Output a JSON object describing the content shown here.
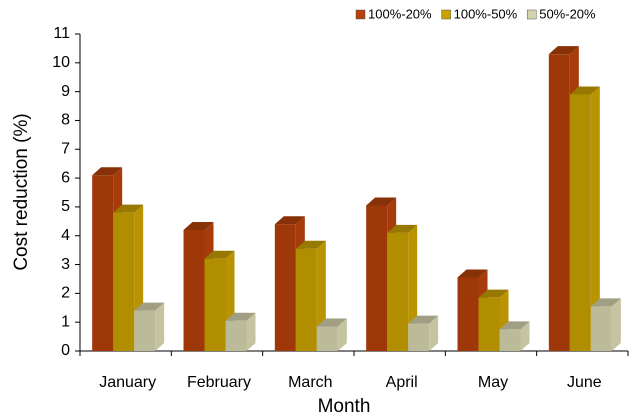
{
  "chart_data": {
    "type": "bar3d",
    "x_label": "Month",
    "y_label": "Cost reduction (%)",
    "categories": [
      "January",
      "February",
      "March",
      "April",
      "May",
      "June"
    ],
    "series": [
      {
        "name": "100%-20%",
        "color": "#b5400a",
        "values": [
          6.1,
          4.2,
          4.4,
          5.05,
          2.55,
          10.3
        ]
      },
      {
        "name": "100%-50%",
        "color": "#c9a000",
        "values": [
          4.8,
          3.2,
          3.55,
          4.1,
          1.85,
          8.9
        ]
      },
      {
        "name": "50%-20%",
        "color": "#d6d4ae",
        "values": [
          1.4,
          1.05,
          0.85,
          0.95,
          0.75,
          1.55
        ]
      }
    ],
    "ylim": [
      0,
      11
    ],
    "yticks": [
      0,
      1,
      2,
      3,
      4,
      5,
      6,
      7,
      8,
      9,
      10,
      11
    ],
    "legend": "top-right"
  }
}
